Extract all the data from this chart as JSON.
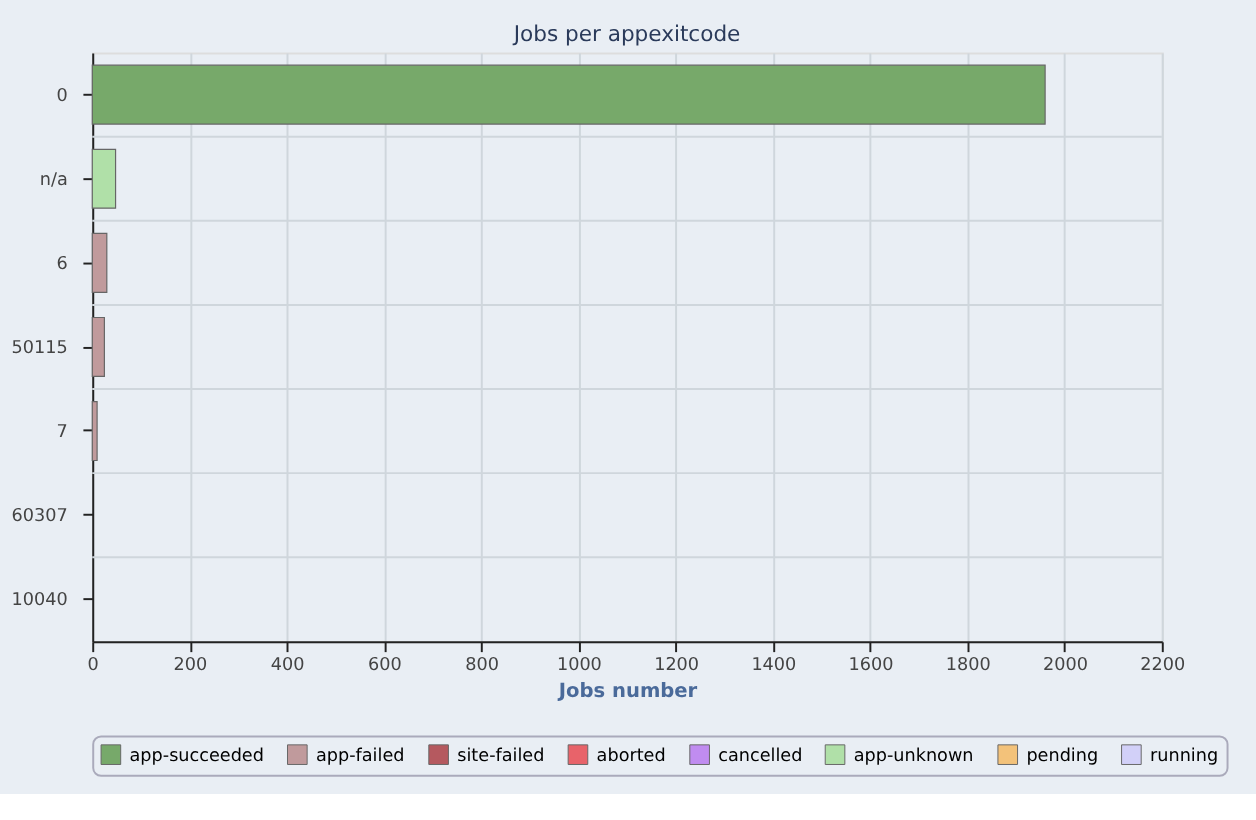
{
  "chart_data": {
    "type": "bar",
    "orientation": "horizontal",
    "title": "Jobs per appexitcode",
    "xlabel": "Jobs number",
    "categories": [
      "0",
      "n/a",
      "6",
      "50115",
      "7",
      "60307",
      "10040"
    ],
    "series": [
      {
        "name": "app-succeeded",
        "color": "#77a96a",
        "values": [
          1960,
          0,
          0,
          0,
          0,
          0,
          0
        ]
      },
      {
        "name": "app-failed",
        "color": "#c09a9c",
        "values": [
          0,
          0,
          30,
          25,
          10,
          0,
          0
        ]
      },
      {
        "name": "site-failed",
        "color": "#b5595f",
        "values": [
          0,
          0,
          0,
          0,
          0,
          0,
          0
        ]
      },
      {
        "name": "aborted",
        "color": "#e8636a",
        "values": [
          0,
          0,
          0,
          0,
          0,
          0,
          0
        ]
      },
      {
        "name": "cancelled",
        "color": "#c08cf0",
        "values": [
          0,
          0,
          0,
          0,
          0,
          0,
          0
        ]
      },
      {
        "name": "app-unknown",
        "color": "#b0e0a8",
        "values": [
          0,
          48,
          0,
          0,
          0,
          0,
          0
        ]
      },
      {
        "name": "pending",
        "color": "#f3c27a",
        "values": [
          0,
          0,
          0,
          0,
          0,
          0,
          0
        ]
      },
      {
        "name": "running",
        "color": "#d2d0f8",
        "values": [
          0,
          0,
          0,
          0,
          0,
          0,
          0
        ]
      }
    ],
    "xlim": [
      0,
      2200
    ],
    "xticks": [
      0,
      200,
      400,
      600,
      800,
      1000,
      1200,
      1400,
      1600,
      1800,
      2000,
      2200
    ],
    "grid": true,
    "legend": "bottom"
  }
}
